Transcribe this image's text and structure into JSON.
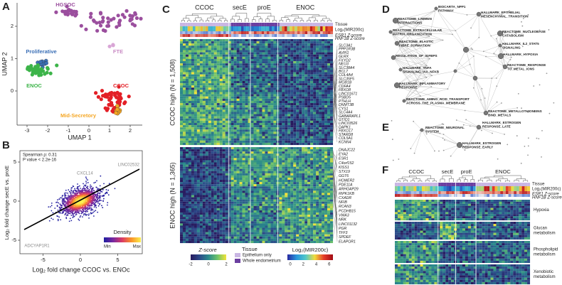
{
  "A": {
    "label": "A",
    "x_label": "UMAP 1",
    "y_label": "UMAP 2",
    "xticks": [
      -3,
      -2,
      -1,
      0,
      1,
      2
    ],
    "yticks": [
      0,
      1,
      2
    ],
    "clusters": [
      "HGSOC",
      "FTE",
      "Proliferative",
      "ENOC",
      "CCOC",
      "Mid-Secretory"
    ]
  },
  "B": {
    "label": "B",
    "x_label": "Log₂ fold change CCOC vs. ENOc",
    "y_label": "Log₂ fold change secE vs. proE",
    "xticks": [
      -5,
      0,
      5
    ],
    "yticks": [
      -5,
      0,
      5
    ],
    "stats": [
      "Spearman ρ: 0.31",
      "P value < 2.2e-16"
    ],
    "genes": [
      "CXCL14",
      "LINC02532",
      "ADCYAP1R1"
    ],
    "legend": {
      "title": "Density",
      "min": "Min",
      "max": "Max"
    }
  },
  "C": {
    "label": "C",
    "groups": [
      "CCOC",
      "secE",
      "proE",
      "ENOC"
    ],
    "annotation_rows": [
      "Tissue",
      "Log₂(MIR200c)",
      "ESR1 Z-score",
      "HNF1B Z-score"
    ],
    "clusters": [
      "CCOC high (N = 1,508)",
      "ENOC high (N = 1,365)"
    ],
    "genes_top": [
      "SLC3A1",
      "PPP1R3B",
      "AVPI1",
      "GLRX",
      "FXYD2",
      "NEU3",
      "SLC38A4",
      "BCL7",
      "COL4A4",
      "SLC35F5",
      "MOB1B",
      "CDFA4",
      "FBXO8",
      "LINC01671",
      "PSBD5",
      "PTHLH",
      "DNMT3B",
      "CYS1",
      "SLC4A4",
      "GABARAPL1",
      "GTIO1",
      "LINC03526",
      "DAPK1",
      "FBXO17",
      "STARD8",
      "COL5A1",
      "KCNN4"
    ],
    "genes_bottom": [
      "DNAJC22",
      "EYA2",
      "ESR1",
      "C4orf152",
      "KISS1",
      "STX19",
      "GGT6",
      "HOMER2",
      "PDE11A",
      "ARHGAP29",
      "RIPK1KB",
      "CXADR",
      "NFIB",
      "RCAN3",
      "PCDHB15",
      "VWA3",
      "NRK",
      "LINC01132",
      "PGR",
      "TFF3",
      "SPDEF",
      "ELAPOR1"
    ],
    "legend": {
      "zscore_title": "Z-score",
      "zscore_ticks": [
        -2,
        0,
        2
      ],
      "tissue_title": "Tissue",
      "tissue_items": [
        "Epithelium only",
        "Whole endometrium"
      ],
      "mir_title": "Log₂(MIR200c)",
      "mir_ticks": [
        0,
        2,
        4,
        6
      ]
    }
  },
  "D": {
    "label": "D",
    "pathways": [
      [
        "BIOCARTA_NPP1",
        "PATHWAY"
      ],
      [
        "HALLMARK_EPITHELIAL",
        "MESENCHYMAL_TRANSITION"
      ],
      [
        "REACTOME_LAMININ",
        "INTERACTIONS"
      ],
      [
        "REACTOME_EXTRACELLULAR",
        "MATRIX_ORGANIZATION"
      ],
      [
        "REACTOME_ELASTIC",
        "FIBRE_FORMATION"
      ],
      [
        "REACTOME_NUCLEOBASE",
        "CATABOLISM"
      ],
      [
        "HALLMARK_IL2_STAT5",
        "SIGNALING"
      ],
      [
        "REGULATION_OF_IGFBPS"
      ],
      [
        "HALLMARK_HYPOXIA"
      ],
      [
        "HALLMARK_TNFA",
        "SIGNALING_VIA_NFKB"
      ],
      [
        "REACTOME_RESPONSE",
        "TO_METAL_IONS"
      ],
      [
        "HALLMARK_INFLAMMATORY",
        "RESPONSE"
      ],
      [
        "REACTOME_AMINO_ACID_TRANSPORT",
        "ACROSS_THE_PLASMA_MEMBRANE"
      ],
      [
        "REACTOME_METALLOTHIONEINS",
        "BIND_METALS"
      ]
    ]
  },
  "E": {
    "label": "E",
    "pathways": [
      [
        "REACTOME_NEURONAL",
        "SYSTEM"
      ],
      [
        "HALLMARK_ESTROGEN",
        "RESPONSE_LATE"
      ],
      [
        "HALLMARK_ESTROGEN",
        "RESPONSE_EARLY"
      ]
    ]
  },
  "F": {
    "label": "F",
    "groups": [
      "CCOC",
      "secE",
      "proE",
      "ENOC"
    ],
    "annotation_rows": [
      "Tissue",
      "Log₂(MIR200c)",
      "ESR1 Z-score",
      "HNF1B Z-score"
    ],
    "modules": [
      [
        "Hypoxia"
      ],
      [
        "Glucan",
        "metabolism"
      ],
      [
        "Phospholipid",
        "metabolism"
      ],
      [
        "Xenobiotic",
        "metabolism"
      ]
    ]
  }
}
